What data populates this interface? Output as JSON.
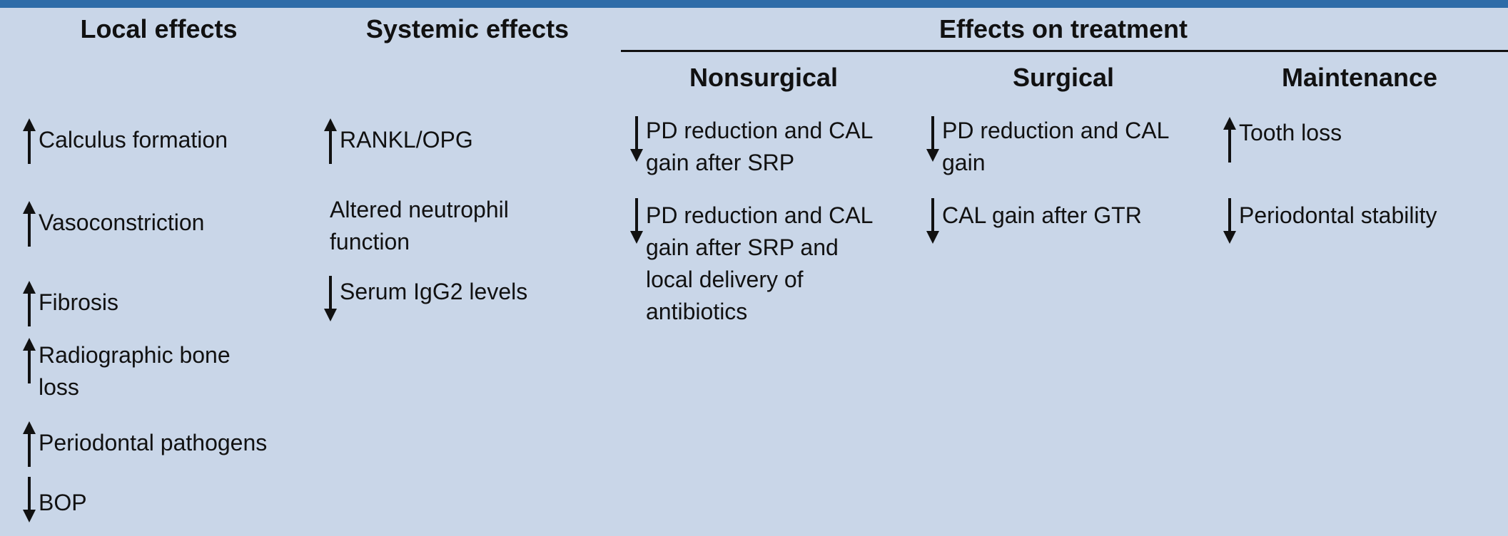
{
  "headers": {
    "local": "Local effects",
    "systemic": "Systemic effects",
    "treatment": "Effects on treatment",
    "nonsurgical": "Nonsurgical",
    "surgical": "Surgical",
    "maintenance": "Maintenance"
  },
  "local_items": [
    {
      "dir": "up",
      "lines": [
        "Calculus formation"
      ]
    },
    {
      "dir": "up",
      "lines": [
        "Vasoconstriction"
      ]
    },
    {
      "dir": "up",
      "lines": [
        "Fibrosis"
      ]
    },
    {
      "dir": "up",
      "lines": [
        "Radiographic bone",
        "loss"
      ]
    },
    {
      "dir": "up",
      "lines": [
        "Periodontal pathogens"
      ]
    },
    {
      "dir": "down",
      "lines": [
        "BOP"
      ]
    }
  ],
  "systemic_items": [
    {
      "dir": "up",
      "lines": [
        "RANKL/OPG"
      ]
    },
    {
      "dir": "none",
      "lines": [
        "Altered neutrophil",
        "function"
      ]
    },
    {
      "dir": "down",
      "lines": [
        "Serum IgG2 levels"
      ]
    }
  ],
  "nonsurgical_items": [
    {
      "dir": "down",
      "lines": [
        "PD reduction and CAL",
        "gain after SRP"
      ]
    },
    {
      "dir": "down",
      "lines": [
        "PD reduction and CAL",
        "gain after SRP and",
        "local delivery of",
        "antibiotics"
      ]
    }
  ],
  "surgical_items": [
    {
      "dir": "down",
      "lines": [
        "PD reduction and CAL",
        "gain"
      ]
    },
    {
      "dir": "down",
      "lines": [
        "CAL gain after GTR"
      ]
    }
  ],
  "maintenance_items": [
    {
      "dir": "up",
      "lines": [
        "Tooth loss"
      ]
    },
    {
      "dir": "down",
      "lines": [
        "Periodontal stability"
      ]
    }
  ]
}
